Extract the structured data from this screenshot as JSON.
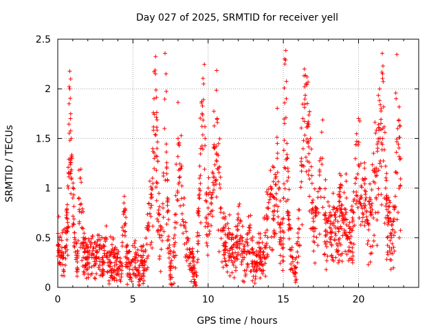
{
  "chart_data": {
    "type": "scatter",
    "title": "Day 027 of 2025, SRMTID for receiver yell",
    "xlabel": "GPS time / hours",
    "ylabel": "SRMTID / TECUs",
    "xlim": [
      0,
      24
    ],
    "ylim": [
      0,
      2.5
    ],
    "x_ticks": [
      0,
      5,
      10,
      15,
      20
    ],
    "y_ticks": [
      0,
      0.5,
      1,
      1.5,
      2,
      2.5
    ],
    "x_tick_labels": [
      "0",
      "5",
      "10",
      "15",
      "20"
    ],
    "y_tick_labels": [
      "0",
      "0.5",
      "1",
      "1.5",
      "2",
      "2.5"
    ],
    "grid": true,
    "marker": "+",
    "series": [
      {
        "name": "SRMTID",
        "color": "#ff0000",
        "x": [
          0.0,
          0.1,
          0.2,
          0.3,
          0.4,
          0.5,
          0.6,
          0.7,
          0.75,
          0.8,
          0.85,
          0.9,
          0.95,
          1.0,
          1.1,
          1.2,
          1.3,
          1.4,
          1.5,
          1.6,
          1.7,
          1.8,
          2.0,
          2.2,
          2.4,
          2.6,
          2.8,
          3.0,
          3.2,
          3.4,
          3.6,
          3.8,
          4.0,
          4.2,
          4.4,
          4.6,
          4.8,
          5.0,
          5.2,
          5.4,
          5.6,
          5.8,
          6.0,
          6.2,
          6.3,
          6.4,
          6.5,
          6.6,
          6.8,
          7.0,
          7.1,
          7.2,
          7.3,
          7.4,
          7.6,
          7.8,
          8.0,
          8.2,
          8.4,
          8.6,
          8.8,
          9.0,
          9.1,
          9.2,
          9.3,
          9.4,
          9.5,
          9.6,
          9.7,
          9.8,
          9.9,
          10.0,
          10.2,
          10.4,
          10.6,
          10.8,
          11.0,
          11.2,
          11.4,
          11.6,
          11.8,
          12.0,
          12.2,
          12.4,
          12.6,
          12.8,
          13.0,
          13.2,
          13.4,
          13.6,
          13.8,
          14.0,
          14.2,
          14.4,
          14.6,
          14.8,
          15.0,
          15.1,
          15.2,
          15.3,
          15.4,
          15.6,
          15.8,
          16.0,
          16.2,
          16.3,
          16.4,
          16.5,
          16.6,
          16.8,
          17.0,
          17.2,
          17.4,
          17.6,
          17.8,
          18.0,
          18.2,
          18.4,
          18.6,
          18.8,
          19.0,
          19.2,
          19.4,
          19.6,
          19.8,
          20.0,
          20.2,
          20.4,
          20.6,
          20.8,
          21.0,
          21.2,
          21.4,
          21.5,
          21.6,
          21.8,
          22.0,
          22.2,
          22.4,
          22.5,
          22.6,
          22.8
        ],
        "y": [
          0.42,
          0.48,
          0.35,
          0.55,
          0.3,
          0.4,
          0.6,
          1.0,
          1.85,
          2.0,
          1.7,
          1.5,
          1.3,
          0.9,
          0.55,
          0.45,
          0.2,
          0.9,
          1.1,
          0.6,
          0.5,
          0.35,
          0.3,
          0.45,
          0.3,
          0.35,
          0.4,
          0.3,
          0.5,
          0.28,
          0.35,
          0.25,
          0.3,
          0.22,
          0.85,
          0.3,
          0.25,
          0.28,
          0.35,
          0.2,
          0.3,
          0.25,
          0.6,
          0.9,
          1.1,
          1.9,
          2.15,
          1.4,
          0.5,
          0.8,
          1.6,
          2.15,
          0.9,
          0.4,
          0.1,
          0.6,
          1.5,
          1.2,
          0.9,
          0.5,
          0.35,
          0.3,
          0.05,
          0.02,
          0.55,
          0.9,
          1.4,
          1.75,
          2.05,
          1.5,
          0.95,
          0.8,
          0.9,
          1.4,
          1.7,
          1.0,
          0.6,
          0.45,
          0.55,
          0.4,
          0.35,
          0.7,
          0.5,
          0.3,
          0.45,
          0.6,
          0.35,
          0.25,
          0.4,
          0.3,
          0.55,
          0.8,
          1.0,
          0.9,
          1.45,
          0.6,
          0.4,
          2.25,
          1.9,
          1.2,
          0.6,
          0.3,
          0.15,
          0.5,
          1.3,
          1.7,
          2.2,
          2.05,
          1.65,
          1.5,
          0.6,
          0.8,
          1.0,
          1.3,
          0.75,
          0.7,
          0.55,
          0.8,
          0.6,
          1.0,
          0.65,
          0.9,
          0.55,
          0.7,
          1.1,
          1.7,
          0.9,
          1.2,
          0.65,
          0.8,
          1.35,
          1.2,
          2.0,
          1.8,
          2.15,
          1.0,
          0.7,
          0.5,
          0.8,
          1.9,
          1.6,
          1.3
        ]
      }
    ]
  }
}
